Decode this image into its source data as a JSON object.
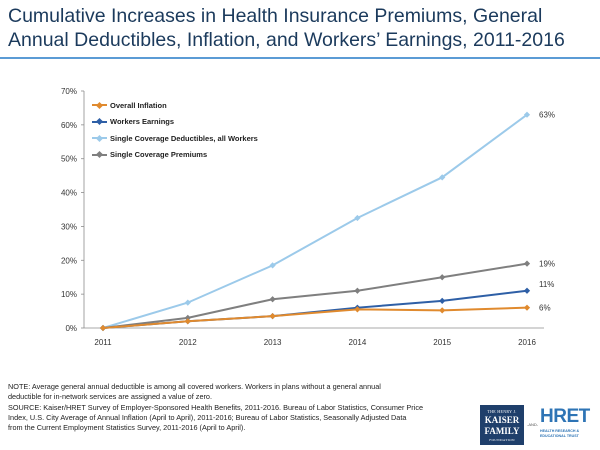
{
  "title": "Cumulative Increases in Health Insurance Premiums, General Annual Deductibles, Inflation, and Workers’ Earnings, 2011-2016",
  "note_lines": [
    "NOTE:  Average general annual deductible is among all covered workers. Workers in plans without a general annual",
    "deductible for in-network services are assigned a value of zero.",
    "SOURCE:  Kaiser/HRET Survey of Employer-Sponsored Health Benefits, 2011-2016.  Bureau of Labor Statistics, Consumer Price",
    "Index, U.S. City Average of Annual Inflation (April to April), 2011-2016;  Bureau of Labor Statistics, Seasonally Adjusted Data",
    "from the Current Employment Statistics Survey, 2011-2016  (April to April)."
  ],
  "logos": {
    "kff_line1": "THE HENRY J.",
    "kff_line2a": "KAISER",
    "kff_line2b": "FAMILY",
    "kff_line3": "FOUNDATION",
    "and": "-AND-",
    "hret_name": "HRET",
    "hret_line1": "HEALTH RESEARCH &",
    "hret_line2": "EDUCATIONAL TRUST"
  },
  "chart_data": {
    "type": "line",
    "x": [
      "2011",
      "2012",
      "2013",
      "2014",
      "2015",
      "2016"
    ],
    "y_ticks": [
      "0%",
      "10%",
      "20%",
      "30%",
      "40%",
      "50%",
      "60%",
      "70%"
    ],
    "ylim": [
      0,
      70
    ],
    "grid": false,
    "legend_position": "top-left",
    "series": [
      {
        "name": "Overall Inflation",
        "color": "#e08a2e",
        "values": [
          0,
          2,
          3.5,
          5.5,
          5.2,
          6
        ],
        "end_label": "6%"
      },
      {
        "name": "Workers Earnings",
        "color": "#2e5fa6",
        "values": [
          0,
          2,
          3.5,
          6,
          8,
          11
        ],
        "end_label": "11%"
      },
      {
        "name": "Single Coverage Deductibles, all Workers",
        "color": "#9ccaea",
        "values": [
          0,
          7.5,
          18.5,
          32.5,
          44.5,
          63
        ],
        "end_label": "63%"
      },
      {
        "name": "Single Coverage Premiums",
        "color": "#7f7f7f",
        "values": [
          0,
          3,
          8.5,
          11,
          15,
          19
        ],
        "end_label": "19%"
      }
    ]
  }
}
